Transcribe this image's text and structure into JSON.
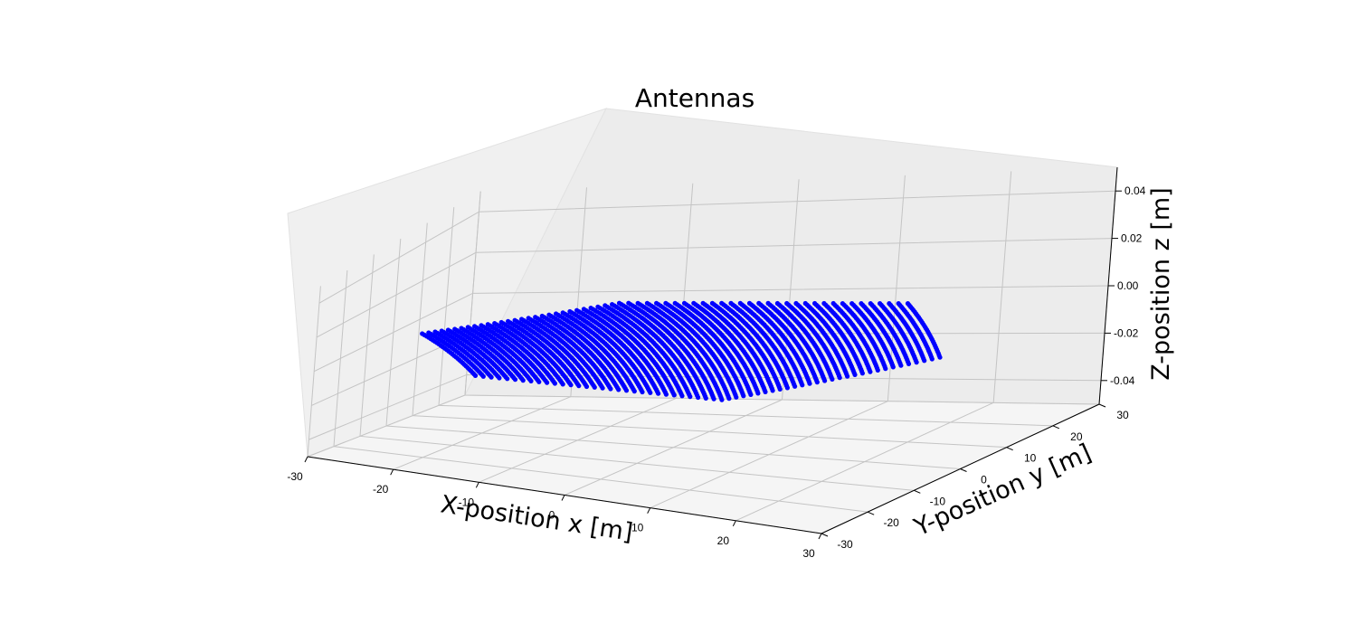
{
  "chart_data": {
    "type": "scatter",
    "projection": "3d",
    "title": "Antennas",
    "xlabel": "X-position x [m]",
    "ylabel": "Y-position y [m]",
    "zlabel": "Z-position z [m]",
    "xlim": [
      -30,
      30
    ],
    "ylim": [
      -30,
      30
    ],
    "zlim": [
      -0.05,
      0.05
    ],
    "x_ticks": [
      "-30",
      "-20",
      "-10",
      "0",
      "10",
      "20",
      "30"
    ],
    "y_ticks": [
      "-30",
      "-20",
      "-10",
      "0",
      "10",
      "20",
      "30"
    ],
    "z_ticks": [
      "-0.04",
      "-0.02",
      "0.00",
      "0.02",
      "0.04"
    ],
    "grid": true,
    "marker_color": "#0000ff",
    "series": [
      {
        "name": "",
        "z": 0.0,
        "layout": "hexagonal grid of antennas, ~1 m spacing, spanning x from about -27 to 27 m and y from about -27 to 27 m, all at z = 0"
      }
    ]
  }
}
